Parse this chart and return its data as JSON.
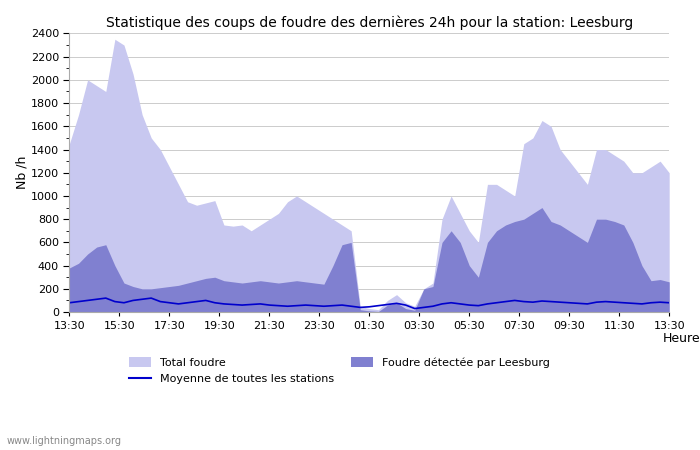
{
  "title": "Statistique des coups de foudre des dernières 24h pour la station: Leesburg",
  "xlabel": "Heure",
  "ylabel": "Nb /h",
  "watermark": "www.lightningmaps.org",
  "ylim": [
    0,
    2400
  ],
  "yticks": [
    0,
    200,
    400,
    600,
    800,
    1000,
    1200,
    1400,
    1600,
    1800,
    2000,
    2200,
    2400
  ],
  "xtick_labels": [
    "13:30",
    "15:30",
    "17:30",
    "19:30",
    "21:30",
    "23:30",
    "01:30",
    "03:30",
    "05:30",
    "07:30",
    "09:30",
    "11:30",
    "13:30"
  ],
  "color_total": "#c8c8f0",
  "color_leesburg": "#8080d0",
  "color_moyenne": "#0000cc",
  "legend_labels": [
    "Total foudre",
    "Foudre détectée par Leesburg",
    "Moyenne de toutes les stations"
  ],
  "total_foudre": [
    1450,
    1700,
    2000,
    1950,
    1900,
    2350,
    2300,
    2050,
    1700,
    1500,
    1400,
    1250,
    1100,
    950,
    920,
    940,
    960,
    750,
    740,
    750,
    700,
    750,
    800,
    850,
    950,
    1000,
    950,
    900,
    850,
    800,
    750,
    700,
    50,
    30,
    20,
    100,
    150,
    80,
    50,
    200,
    250,
    800,
    1000,
    850,
    700,
    600,
    1100,
    1100,
    1050,
    1000,
    1450,
    1500,
    1650,
    1600,
    1400,
    1300,
    1200,
    1100,
    1400,
    1400,
    1350,
    1300,
    1200,
    1200,
    1250,
    1300,
    1200
  ],
  "leesburg": [
    380,
    420,
    500,
    560,
    580,
    400,
    250,
    220,
    200,
    200,
    210,
    220,
    230,
    250,
    270,
    290,
    300,
    270,
    260,
    250,
    260,
    270,
    260,
    250,
    260,
    270,
    260,
    250,
    240,
    400,
    580,
    600,
    20,
    10,
    5,
    60,
    80,
    30,
    15,
    200,
    220,
    600,
    700,
    600,
    400,
    300,
    600,
    700,
    750,
    780,
    800,
    850,
    900,
    780,
    750,
    700,
    650,
    600,
    800,
    800,
    780,
    750,
    600,
    400,
    270,
    280,
    260
  ],
  "moyenne": [
    80,
    90,
    100,
    110,
    120,
    90,
    80,
    100,
    110,
    120,
    90,
    80,
    70,
    80,
    90,
    100,
    80,
    70,
    65,
    60,
    65,
    70,
    60,
    55,
    50,
    55,
    60,
    55,
    50,
    55,
    60,
    50,
    40,
    45,
    55,
    65,
    75,
    60,
    30,
    40,
    50,
    70,
    80,
    70,
    60,
    55,
    70,
    80,
    90,
    100,
    90,
    85,
    95,
    90,
    85,
    80,
    75,
    70,
    85,
    90,
    85,
    80,
    75,
    70,
    80,
    85,
    80
  ]
}
